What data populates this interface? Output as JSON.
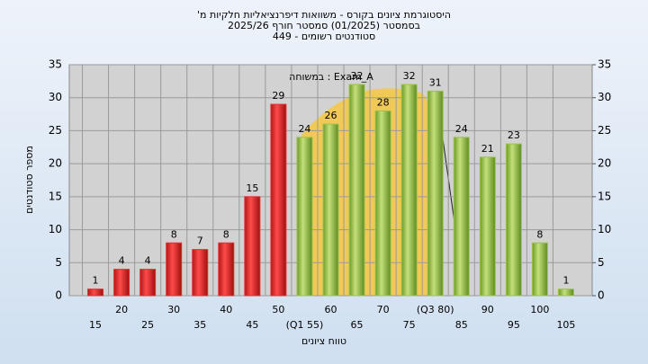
{
  "chart_data": {
    "type": "bar",
    "title": [
      "היסטוגרמת ציונים בקורס - משוואות דיפרנציאליות חלקיות מ'",
      "בסמסטר (01/2025) סמסטר חורף 2025/26",
      "סטודנטים רשומים - 449"
    ],
    "annotation": "במשוחה : Exam_A",
    "x_label": "טווח ציונים",
    "y_label": "מספר סטודנטים",
    "categories": [
      "15",
      "20",
      "25",
      "30",
      "35",
      "40",
      "45",
      "50",
      "(Q1 55)",
      "60",
      "65",
      "70",
      "75",
      "(Q3 80)",
      "85",
      "90",
      "95",
      "100",
      "105"
    ],
    "values": [
      1,
      4,
      4,
      8,
      7,
      8,
      15,
      29,
      24,
      26,
      32,
      28,
      32,
      31,
      24,
      21,
      23,
      8,
      1
    ],
    "colors": [
      "#e03030",
      "#e03030",
      "#e03030",
      "#e03030",
      "#e03030",
      "#e03030",
      "#e03030",
      "#e03030",
      "#9cc44c",
      "#9cc44c",
      "#9cc44c",
      "#9cc44c",
      "#9cc44c",
      "#9cc44c",
      "#9cc44c",
      "#9cc44c",
      "#9cc44c",
      "#9cc44c",
      "#9cc44c"
    ],
    "ylim": [
      0,
      35
    ],
    "yticks": [
      0,
      5,
      10,
      15,
      20,
      25,
      30,
      35
    ],
    "y2lim": [
      0,
      35
    ],
    "y2ticks": [
      0,
      5,
      10,
      15,
      20,
      25,
      30,
      35
    ],
    "grid": true
  }
}
